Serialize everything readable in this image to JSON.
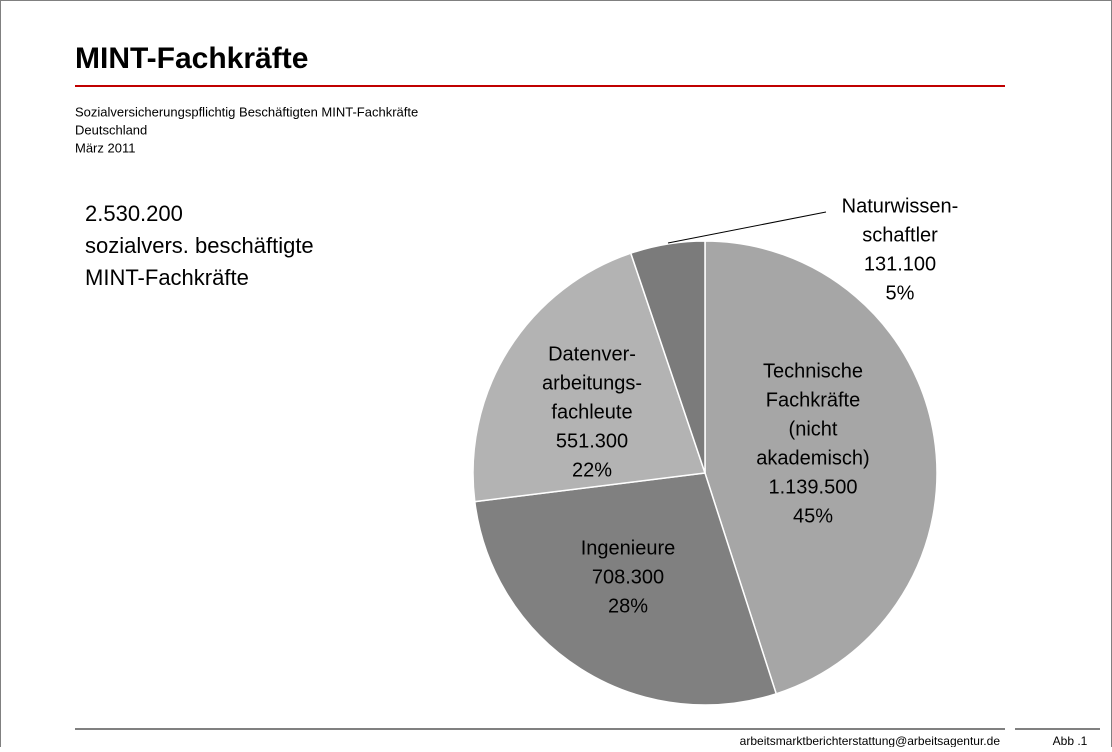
{
  "header": {
    "title": "MINT-Fachkräfte",
    "subtitle": [
      "Sozialversicherungspflichtig Beschäftigten MINT-Fachkräfte",
      "Deutschland",
      "März 2011"
    ]
  },
  "chart_data": {
    "type": "pie",
    "annotation": [
      "2.530.200",
      "sozialvers. beschäftigte",
      "MINT-Fachkräfte"
    ],
    "categories": [
      [
        "Technische",
        "Fachkräfte",
        "(nicht",
        "akademisch)"
      ],
      [
        "Ingenieure"
      ],
      [
        "Datenver-",
        "arbeitungs-",
        "fachleute"
      ],
      [
        "Naturwissen-",
        "schaftler"
      ]
    ],
    "values": [
      1139500,
      708300,
      551300,
      131100
    ],
    "value_labels": [
      "1.139.500",
      "708.300",
      "551.300",
      "131.100"
    ],
    "percentages": [
      45,
      28,
      22,
      5
    ],
    "percentage_labels": [
      "45%",
      "28%",
      "22%",
      "5%"
    ],
    "colors": [
      "#a6a6a6",
      "#808080",
      "#b3b3b3",
      "#7b7b7b"
    ]
  },
  "footer": {
    "email": "arbeitsmarktberichterstattung@arbeitsagentur.de",
    "figure": "Abb .1"
  }
}
